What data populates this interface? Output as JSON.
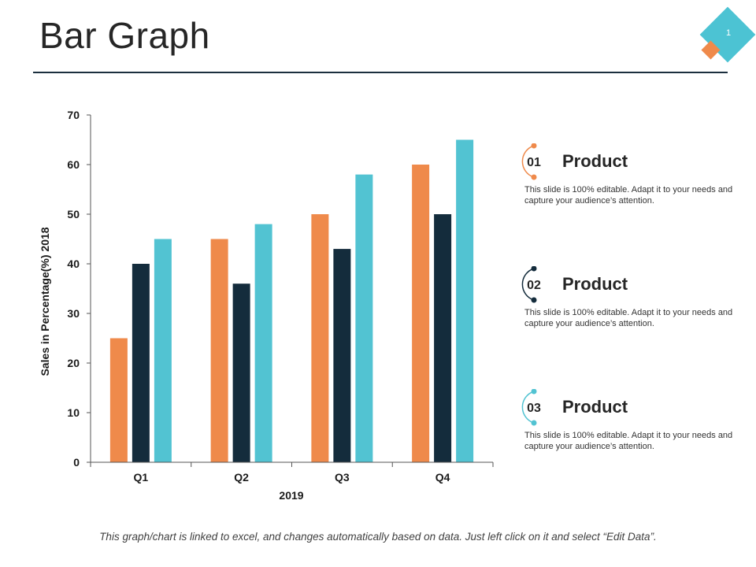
{
  "page": {
    "title": "Bar Graph",
    "slide_number": "1",
    "footer_note": "This graph/chart is linked to excel, and changes automatically based on data.  Just left click on it and select “Edit Data”."
  },
  "colors": {
    "orange": "#ef8a4b",
    "navy": "#142c3c",
    "teal": "#52c3d2",
    "title_rule": "#1b2f3e"
  },
  "legend": [
    {
      "number": "01",
      "title": "Product",
      "description": "This slide is 100% editable. Adapt it to your needs and capture your audience’s attention.",
      "color": "#ef8a4b"
    },
    {
      "number": "02",
      "title": "Product",
      "description": "This slide is 100% editable. Adapt it to your needs and capture your audience’s attention.",
      "color": "#142c3c"
    },
    {
      "number": "03",
      "title": "Product",
      "description": "This slide is 100% editable. Adapt it to your needs and capture your audience’s attention.",
      "color": "#52c3d2"
    }
  ],
  "chart_data": {
    "type": "bar",
    "title": "",
    "xlabel": "2019",
    "ylabel": "Sales in Percentage(%) 2018",
    "categories": [
      "Q1",
      "Q2",
      "Q3",
      "Q4"
    ],
    "ylim": [
      0,
      70
    ],
    "yticks": [
      0,
      10,
      20,
      30,
      40,
      50,
      60,
      70
    ],
    "grid": false,
    "legend_position": "right",
    "series": [
      {
        "values": [
          25,
          45,
          50,
          60
        ],
        "color": "#ef8a4b"
      },
      {
        "values": [
          40,
          36,
          43,
          50
        ],
        "color": "#142c3c"
      },
      {
        "values": [
          45,
          48,
          58,
          65
        ],
        "color": "#52c3d2"
      }
    ]
  }
}
